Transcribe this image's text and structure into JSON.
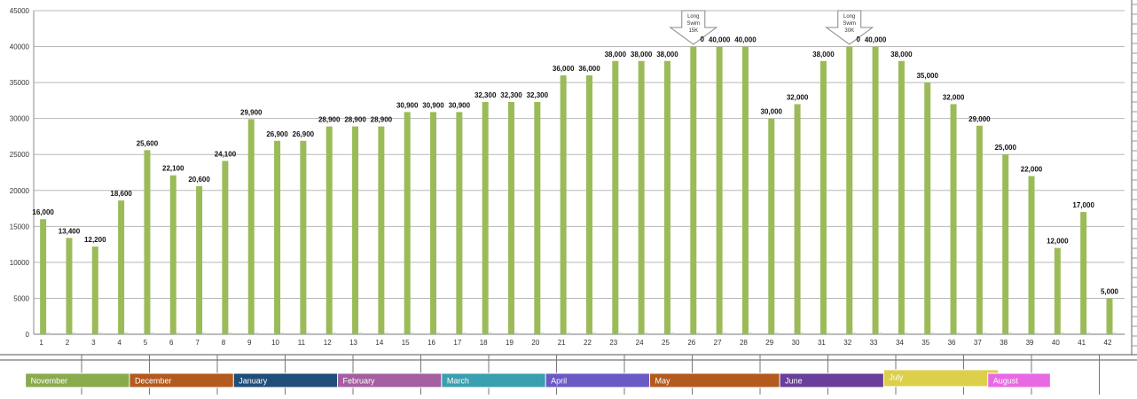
{
  "chart_data": {
    "type": "bar",
    "title": "",
    "xlabel": "",
    "ylabel": "",
    "ylim": [
      0,
      45000
    ],
    "yticks": [
      0,
      5000,
      10000,
      15000,
      20000,
      25000,
      30000,
      35000,
      40000,
      45000
    ],
    "grid": true,
    "categories": [
      "1",
      "2",
      "3",
      "4",
      "5",
      "6",
      "7",
      "8",
      "9",
      "10",
      "11",
      "12",
      "13",
      "14",
      "15",
      "16",
      "17",
      "18",
      "19",
      "20",
      "21",
      "22",
      "23",
      "24",
      "25",
      "26",
      "27",
      "28",
      "29",
      "30",
      "31",
      "32",
      "33",
      "34",
      "35",
      "36",
      "37",
      "38",
      "39",
      "40",
      "41",
      "42"
    ],
    "values": [
      16000,
      13400,
      12200,
      18600,
      25600,
      22100,
      20600,
      24100,
      29900,
      26900,
      26900,
      28900,
      28900,
      28900,
      30900,
      30900,
      30900,
      32300,
      32300,
      32300,
      36000,
      36000,
      38000,
      38000,
      38000,
      40000,
      40000,
      40000,
      30000,
      32000,
      38000,
      40000,
      40000,
      38000,
      35000,
      32000,
      29000,
      25000,
      22000,
      12000,
      17000,
      5000
    ],
    "data_labels": [
      "16,000",
      "13,400",
      "12,200",
      "18,600",
      "25,600",
      "22,100",
      "20,600",
      "24,100",
      "29,900",
      "26,900",
      "26,900",
      "28,900",
      "28,900",
      "28,900",
      "30,900",
      "30,900",
      "30,900",
      "32,300",
      "32,300",
      "32,300",
      "36,000",
      "36,000",
      "38,000",
      "38,000",
      "38,000",
      "",
      "40,000",
      "40,000",
      "30,000",
      "32,000",
      "38,000",
      "",
      "40,000",
      "38,000",
      "35,000",
      "32,000",
      "29,000",
      "25,000",
      "22,000",
      "12,000",
      "17,000",
      "5,000"
    ],
    "bar_color": "#9bbb59",
    "annotations": [
      {
        "category": "26",
        "lines": [
          "Long",
          "Swim",
          "15K"
        ]
      },
      {
        "category": "32",
        "lines": [
          "Long",
          "Swim",
          "30K"
        ]
      }
    ],
    "annotation_fragments": [
      {
        "category": "26",
        "text": "0"
      },
      {
        "category": "32",
        "text": "0"
      }
    ],
    "months": [
      {
        "label": "November",
        "color": "#8aaa4e",
        "start_week": 1,
        "end_week": 5
      },
      {
        "label": "December",
        "color": "#b35a1f",
        "start_week": 5,
        "end_week": 9
      },
      {
        "label": "January",
        "color": "#1f4e79",
        "start_week": 9,
        "end_week": 13
      },
      {
        "label": "February",
        "color": "#a45fa0",
        "start_week": 13,
        "end_week": 17
      },
      {
        "label": "March",
        "color": "#3a9fae",
        "start_week": 17,
        "end_week": 21
      },
      {
        "label": "April",
        "color": "#6a5ac4",
        "start_week": 21,
        "end_week": 25
      },
      {
        "label": "May",
        "color": "#b35a1f",
        "start_week": 25,
        "end_week": 30
      },
      {
        "label": "June",
        "color": "#6a3f9b",
        "start_week": 30,
        "end_week": 34
      },
      {
        "label": "July",
        "color": "#dccf4a",
        "start_week": 34,
        "end_week": 38
      },
      {
        "label": "August",
        "color": "#e86ae3",
        "start_week": 38,
        "end_week": 40
      }
    ]
  }
}
